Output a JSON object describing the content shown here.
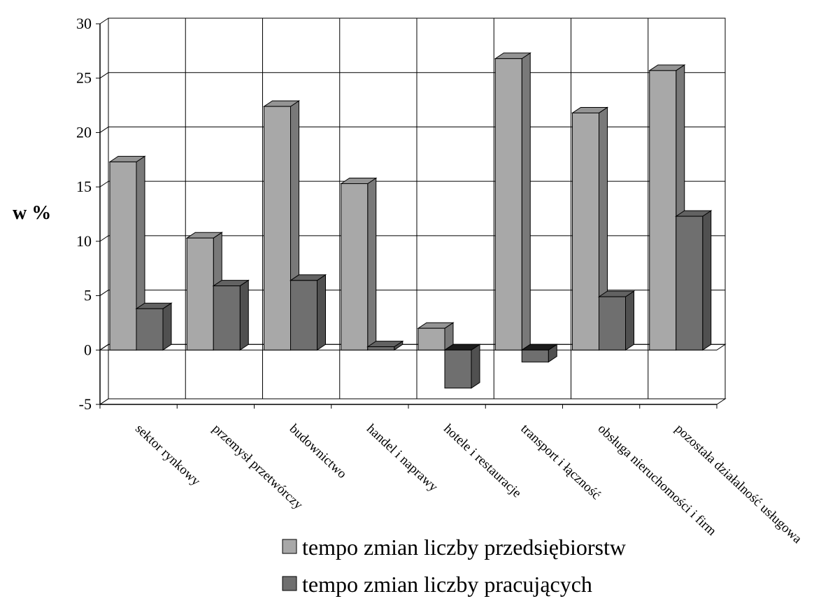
{
  "chart_data": {
    "type": "bar",
    "title": "",
    "xlabel": "",
    "ylabel": "w %",
    "ylim": [
      -5,
      30
    ],
    "yticks": [
      -5,
      0,
      5,
      10,
      15,
      20,
      25,
      30
    ],
    "grid": true,
    "three_d": true,
    "legend_position": "bottom",
    "categories": [
      "sektor rynkowy",
      "przemysł przetwórczy",
      "budownictwo",
      "handel i naprawy",
      "hotele i restauracje",
      "transport i łączność",
      "obsługa nieruchomości i firm",
      "pozostała działalność usługowa"
    ],
    "series": [
      {
        "name": "tempo zmian liczby przedsiębiorstw",
        "color": "#a8a8a8",
        "values": [
          17.3,
          10.3,
          22.4,
          15.3,
          2.0,
          26.8,
          21.8,
          25.7
        ]
      },
      {
        "name": "tempo zmian liczby pracujących",
        "color": "#6f6f6f",
        "values": [
          3.8,
          5.9,
          6.4,
          0.3,
          -3.5,
          -1.1,
          4.9,
          12.3
        ]
      }
    ]
  }
}
